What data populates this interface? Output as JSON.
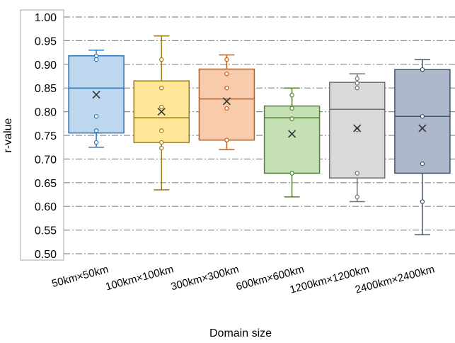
{
  "chart_data": {
    "type": "box",
    "title": "",
    "xlabel": "Domain size",
    "ylabel": "r-value",
    "ylim": [
      0.5,
      1.0
    ],
    "yticks": [
      "0.50",
      "0.55",
      "0.60",
      "0.65",
      "0.70",
      "0.75",
      "0.80",
      "0.85",
      "0.90",
      "0.95",
      "1.00"
    ],
    "grid": "horizontal dash-dot",
    "categories": [
      "50km×50km",
      "100km×100km",
      "300km×300km",
      "600km×600km",
      "1200km×1200km",
      "2400km×2400km"
    ],
    "series": [
      {
        "category": "50km×50km",
        "min": 0.725,
        "q1": 0.755,
        "median": 0.85,
        "q3": 0.918,
        "max": 0.93,
        "mean": 0.836,
        "points": [
          0.735,
          0.76,
          0.79,
          0.91,
          0.918
        ],
        "fill": "#bdd7ee",
        "stroke": "#2e75b6"
      },
      {
        "category": "100km×100km",
        "min": 0.635,
        "q1": 0.735,
        "median": 0.787,
        "q3": 0.865,
        "max": 0.96,
        "mean": 0.8,
        "points": [
          0.723,
          0.735,
          0.76,
          0.81,
          0.85,
          0.91
        ],
        "fill": "#ffe699",
        "stroke": "#9c7b16"
      },
      {
        "category": "300km×300km",
        "min": 0.72,
        "q1": 0.74,
        "median": 0.827,
        "q3": 0.89,
        "max": 0.92,
        "mean": 0.822,
        "points": [
          0.74,
          0.807,
          0.85,
          0.88,
          0.91
        ],
        "fill": "#f8cbad",
        "stroke": "#c55a11"
      },
      {
        "category": "600km×600km",
        "min": 0.62,
        "q1": 0.67,
        "median": 0.787,
        "q3": 0.812,
        "max": 0.85,
        "mean": 0.753,
        "points": [
          0.67,
          0.785,
          0.807,
          0.835
        ],
        "fill": "#c5e0b4",
        "stroke": "#548235"
      },
      {
        "category": "1200km×1200km",
        "min": 0.61,
        "q1": 0.66,
        "median": 0.805,
        "q3": 0.862,
        "max": 0.88,
        "mean": 0.765,
        "points": [
          0.62,
          0.67,
          0.762,
          0.85,
          0.86,
          0.87
        ],
        "fill": "#d9d9d9",
        "stroke": "#767171"
      },
      {
        "category": "2400km×2400km",
        "min": 0.54,
        "q1": 0.67,
        "median": 0.79,
        "q3": 0.889,
        "max": 0.91,
        "mean": 0.765,
        "points": [
          0.61,
          0.69,
          0.79,
          0.889
        ],
        "fill": "#adb9ca",
        "stroke": "#44546a"
      }
    ]
  }
}
